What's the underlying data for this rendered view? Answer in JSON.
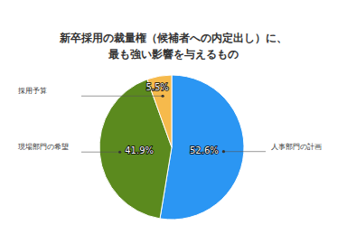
{
  "chart_data": {
    "type": "pie",
    "title": "新卒採用の裁量権（候補者への内定出し）に、\n最も強い影響を与えるもの",
    "categories": [
      "人事部門の計画",
      "現場部門の希望",
      "採用予算"
    ],
    "values": [
      52.6,
      41.9,
      5.5
    ],
    "value_labels": [
      "52.6%",
      "41.9%",
      "5.5%"
    ],
    "colors": [
      "#2b96f3",
      "#5b8a1e",
      "#f6ba4c"
    ],
    "data_labels": true
  }
}
